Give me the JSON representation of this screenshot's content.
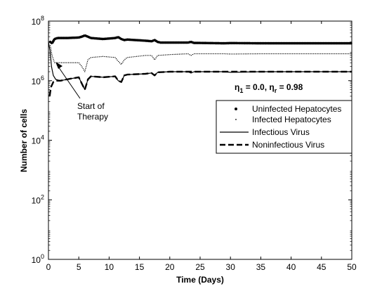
{
  "chart_data": {
    "type": "line",
    "xlabel": "Time (Days)",
    "ylabel": "Number of cells",
    "xlim": [
      0,
      50
    ],
    "ylim": [
      1,
      100000000
    ],
    "yscale": "log",
    "grid": false,
    "legend_position": "right",
    "xticks": [
      "0",
      "5",
      "10",
      "15",
      "20",
      "25",
      "30",
      "35",
      "40",
      "45",
      "50"
    ],
    "yticks": [
      {
        "base": "10",
        "exp": "0"
      },
      {
        "base": "10",
        "exp": "2"
      },
      {
        "base": "10",
        "exp": "4"
      },
      {
        "base": "10",
        "exp": "6"
      },
      {
        "base": "10",
        "exp": "8"
      }
    ],
    "annotation": {
      "line1": "Start of",
      "line2": "Therapy"
    },
    "parameter_label": {
      "eta": "η",
      "sub1": "1",
      "mid": " = 0.0, η",
      "subr": "r",
      "tail": " = 0.98"
    },
    "series": [
      {
        "name": "Uninfected Hepatocytes",
        "style": "thick-dotted",
        "x": [
          0.3,
          0.6,
          1,
          1.5,
          3,
          5,
          5.5,
          6,
          6.5,
          7,
          9,
          11,
          11.5,
          12,
          12.5,
          13,
          16,
          17,
          17.5,
          18,
          18.5,
          20,
          23,
          23.5,
          24,
          25,
          29,
          30,
          35,
          40,
          45,
          50
        ],
        "y": [
          20000000,
          18000000,
          25000000,
          27000000,
          27000000,
          28000000,
          30000000,
          33000000,
          30000000,
          27000000,
          25000000,
          27000000,
          29000000,
          25000000,
          23000000,
          24000000,
          22000000,
          21000000,
          23000000,
          20000000,
          19000000,
          19000000,
          19000000,
          20000000,
          18500000,
          18500000,
          18000000,
          18300000,
          18000000,
          18000000,
          18000000,
          18000000
        ]
      },
      {
        "name": "Infected Hepatocytes",
        "style": "thin-dotted",
        "x": [
          0.3,
          0.6,
          1,
          1.5,
          3,
          5,
          5.5,
          6,
          6.5,
          7,
          9,
          11,
          11.5,
          12,
          12.5,
          13,
          16,
          17,
          17.5,
          18,
          20,
          23,
          23.5,
          24,
          25,
          29,
          30,
          35,
          40,
          45,
          50
        ],
        "y": [
          15000000,
          7000000,
          4000000,
          4000000,
          4000000,
          4000000,
          3000000,
          2000000,
          5000000,
          6000000,
          6500000,
          6000000,
          4500000,
          3500000,
          5000000,
          6000000,
          7000000,
          7000000,
          5000000,
          7000000,
          7500000,
          8000000,
          7000000,
          8000000,
          8000000,
          8000000,
          7800000,
          8000000,
          8000000,
          8000000,
          8000000
        ]
      },
      {
        "name": "Infectious Virus",
        "style": "solid",
        "x": [
          0,
          0.3,
          0.5,
          0.8,
          1.2,
          2,
          3,
          5,
          5.5,
          6,
          6.5,
          7,
          9,
          11,
          11.5,
          12,
          12.5,
          13,
          16,
          17,
          17.5,
          18,
          20,
          23,
          23.5,
          24,
          25,
          29,
          30,
          35,
          40,
          45,
          50
        ],
        "y": [
          20000000,
          9000000,
          3000000,
          1500000,
          1100000,
          1000000,
          1100000,
          1300000,
          800000,
          500000,
          1100000,
          1400000,
          1300000,
          1400000,
          1000000,
          900000,
          1500000,
          1600000,
          1700000,
          1800000,
          1500000,
          1900000,
          2000000,
          2000000,
          1800000,
          2000000,
          2000000,
          2000000,
          1900000,
          2000000,
          2000000,
          2000000,
          2000000
        ]
      },
      {
        "name": "Noninfectious Virus",
        "style": "dashed",
        "x": [
          0.2,
          0.4,
          0.8,
          1.2,
          2,
          3,
          5,
          5.5,
          6,
          6.5,
          7,
          9,
          11,
          11.5,
          12,
          12.5,
          13,
          16,
          17,
          17.5,
          18,
          20,
          23,
          25,
          30,
          35,
          40,
          45,
          50
        ],
        "y": [
          300000,
          600000,
          900000,
          1000000,
          1000000,
          1100000,
          1300000,
          800000,
          500000,
          1100000,
          1400000,
          1300000,
          1400000,
          1000000,
          900000,
          1500000,
          1600000,
          1700000,
          1800000,
          1500000,
          1900000,
          2000000,
          2000000,
          2000000,
          2000000,
          2000000,
          2000000,
          2000000,
          2000000
        ]
      }
    ]
  }
}
